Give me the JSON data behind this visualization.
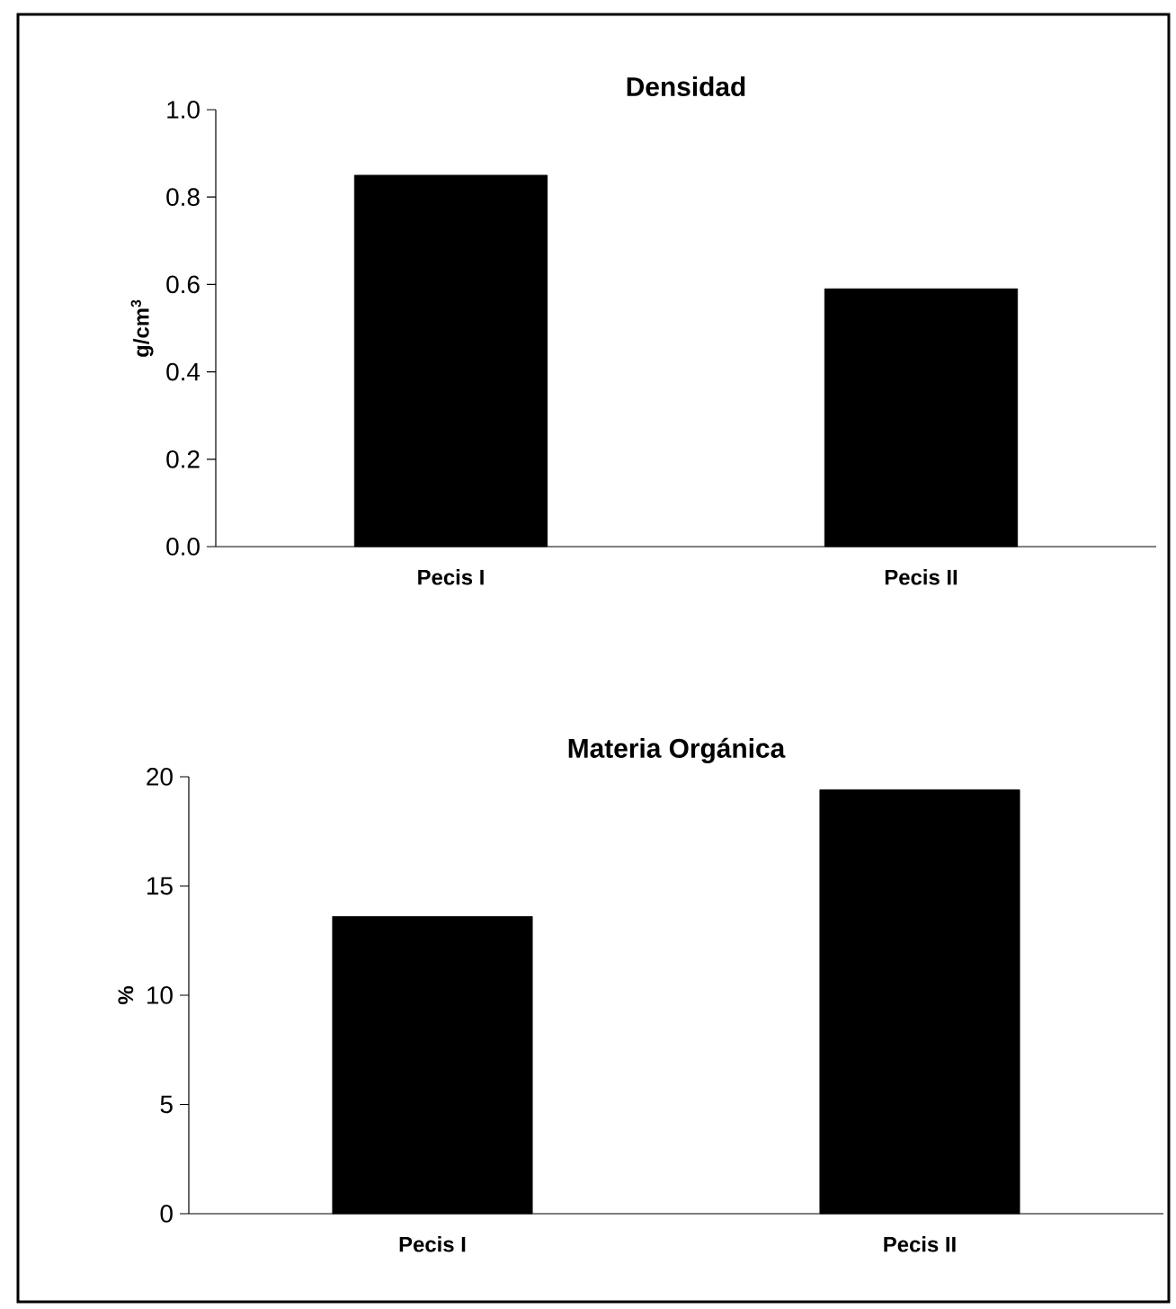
{
  "chart_data": [
    {
      "type": "bar",
      "title": "Densidad",
      "ylabel": "g/cm$^{3}$",
      "categories": [
        "Pecis I",
        "Pecis II"
      ],
      "values": [
        0.85,
        0.59
      ],
      "color": "#000000",
      "ylim": [
        0,
        1
      ],
      "yticks": [
        {
          "value": 0,
          "label": "0.0"
        },
        0.2,
        0.4,
        0.6,
        0.8,
        {
          "value": 1,
          "label": "1.0"
        }
      ],
      "grid": false
    },
    {
      "type": "bar",
      "title": "Materia Orgánica",
      "ylabel": "%",
      "categories": [
        "Pecis I",
        "Pecis II"
      ],
      "values": [
        13.6,
        19.4
      ],
      "color": "#000000",
      "ylim": [
        0,
        20
      ],
      "yticks": [
        0,
        5,
        10,
        15,
        20
      ],
      "grid": false
    }
  ]
}
